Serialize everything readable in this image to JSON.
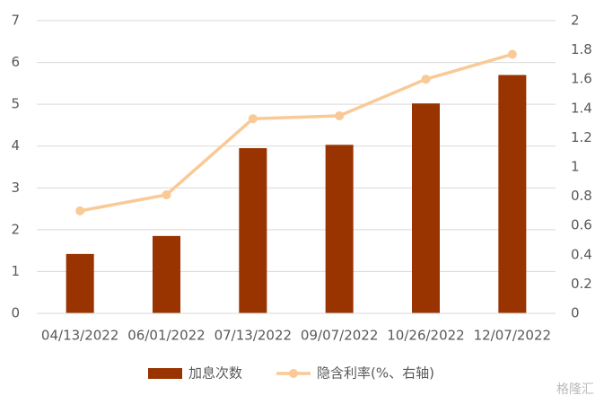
{
  "chart_data": {
    "type": "bar",
    "categories": [
      "04/13/2022",
      "06/01/2022",
      "07/13/2022",
      "09/07/2022",
      "10/26/2022",
      "12/07/2022"
    ],
    "series": [
      {
        "name": "加息次数",
        "type": "bar",
        "color": "#993300",
        "values": [
          1.42,
          1.85,
          3.95,
          4.03,
          5.02,
          5.7
        ]
      },
      {
        "name": "隐含利率(%、右轴)",
        "type": "line",
        "axis": "y2",
        "color": "#f9c996",
        "values": [
          0.7,
          0.81,
          1.33,
          1.35,
          1.6,
          1.77
        ]
      }
    ],
    "ylim": [
      0,
      7
    ],
    "yticks": [
      0,
      1,
      2,
      3,
      4,
      5,
      6,
      7
    ],
    "y2lim": [
      0,
      2
    ],
    "y2ticks": [
      0,
      0.2,
      0.4,
      0.6,
      0.8,
      1,
      1.2,
      1.4,
      1.6,
      1.8,
      2
    ],
    "grid": true,
    "legend": "bottom",
    "watermark": "格隆汇"
  }
}
